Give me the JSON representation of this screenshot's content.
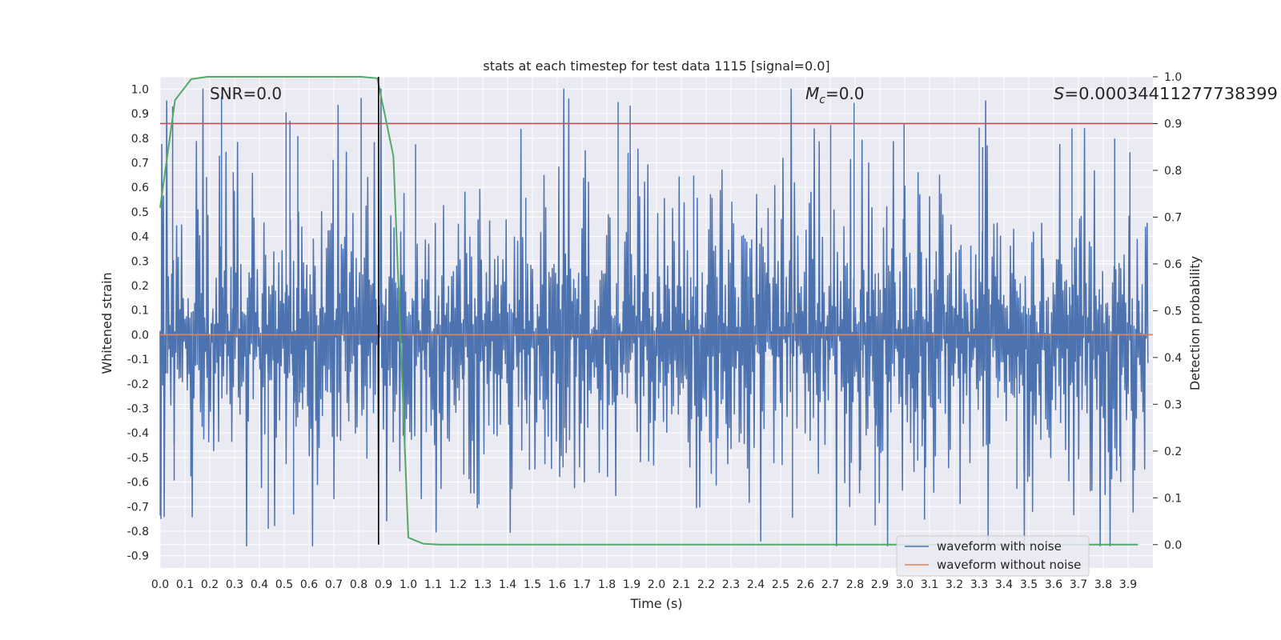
{
  "chart_data": {
    "type": "line",
    "title": "stats at each timestep for test data 1115 [signal=0.0]",
    "xlabel": "Time (s)",
    "ylabel": "Whitened strain",
    "y2label": "Detection probability",
    "xlim": [
      0.0,
      4.0
    ],
    "ylim": [
      -0.95,
      1.05
    ],
    "y2lim": [
      -0.05,
      1.0
    ],
    "xticks": [
      "0.0",
      "0.1",
      "0.2",
      "0.3",
      "0.4",
      "0.5",
      "0.6",
      "0.7",
      "0.8",
      "0.9",
      "1.0",
      "1.1",
      "1.2",
      "1.3",
      "1.4",
      "1.5",
      "1.6",
      "1.7",
      "1.8",
      "1.9",
      "2.0",
      "2.1",
      "2.2",
      "2.3",
      "2.4",
      "2.5",
      "2.6",
      "2.7",
      "2.8",
      "2.9",
      "3.0",
      "3.1",
      "3.2",
      "3.3",
      "3.4",
      "3.5",
      "3.6",
      "3.7",
      "3.8",
      "3.9"
    ],
    "yticks": [
      "1.0",
      "0.9",
      "0.8",
      "0.7",
      "0.6",
      "0.5",
      "0.4",
      "0.3",
      "0.2",
      "0.1",
      "0.0",
      "-0.1",
      "-0.2",
      "-0.3",
      "-0.4",
      "-0.5",
      "-0.6",
      "-0.7",
      "-0.8",
      "-0.9"
    ],
    "y2ticks": [
      "1.0",
      "0.9",
      "0.8",
      "0.7",
      "0.6",
      "0.5",
      "0.4",
      "0.3",
      "0.2",
      "0.1",
      "0.0"
    ],
    "annotations": {
      "snr": "SNR=0.0",
      "mc_symbol": "M",
      "mc_sub": "c",
      "mc_value": "=0.0",
      "s_symbol": "S",
      "s_value": "=0.00034411277738399"
    },
    "threshold_y2": 0.9,
    "peak_marker_x": 0.88,
    "series": [
      {
        "name": "waveform with noise",
        "color": "#4c72b0",
        "axis": "left",
        "style": "noise",
        "amplitude_range": [
          -0.86,
          1.0
        ],
        "n_samples": 4096
      },
      {
        "name": "waveform without noise",
        "color": "#dd8452",
        "axis": "left",
        "x": [
          0.0,
          4.0
        ],
        "y": [
          0.0,
          0.0
        ]
      },
      {
        "name": "detection probability",
        "color": "#55a868",
        "axis": "right",
        "x": [
          0.0,
          0.06,
          0.125,
          0.19,
          0.25,
          0.31,
          0.375,
          0.44,
          0.5,
          0.56,
          0.625,
          0.69,
          0.75,
          0.81,
          0.875,
          0.94,
          1.0,
          1.06,
          1.125,
          1.5,
          2.0,
          2.5,
          3.0,
          3.5,
          3.94
        ],
        "y": [
          0.72,
          0.95,
          0.995,
          1.0,
          1.0,
          1.0,
          1.0,
          1.0,
          1.0,
          1.0,
          1.0,
          1.0,
          1.0,
          1.0,
          0.997,
          0.83,
          0.015,
          0.002,
          0.0,
          0.0,
          0.0,
          0.0,
          0.0,
          0.0,
          0.0
        ]
      }
    ],
    "colors": {
      "threshold": "#c44e52",
      "marker": "#000000",
      "plot_bg": "#eaeaf2",
      "grid": "#ffffff"
    },
    "legend": {
      "position": "lower-right",
      "entries": [
        "waveform with noise",
        "waveform without noise"
      ]
    }
  }
}
